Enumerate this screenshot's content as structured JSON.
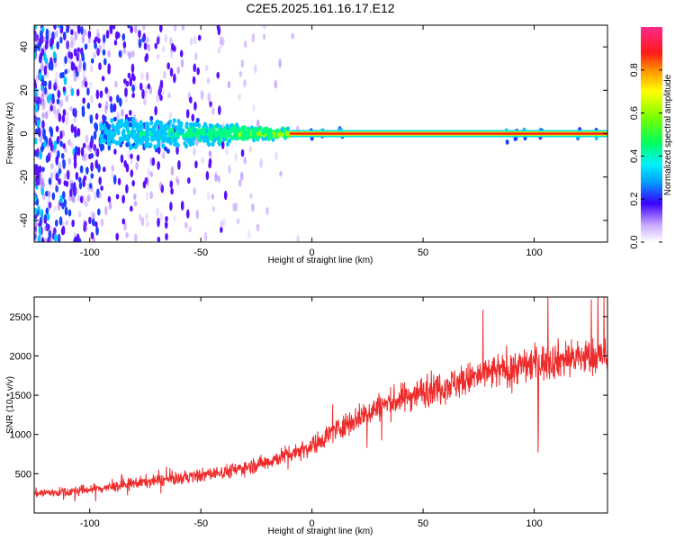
{
  "title": "C2E5.2025.161.16.17.E12",
  "colors": {
    "snr_line": "#ee2b2b",
    "spectrogram_base": "#7a00ff",
    "axes": "#000000"
  },
  "chart_data": [
    {
      "type": "heatmap",
      "xlabel": "Height of straight line (km)",
      "ylabel": "Frequency (Hz)",
      "xlim": [
        -125,
        133
      ],
      "ylim": [
        -50,
        50
      ],
      "xticks": [
        -100,
        -50,
        0,
        50,
        100
      ],
      "xtick_labels": [
        "-100",
        "-50",
        "0",
        "50",
        "100"
      ],
      "yticks": [
        -40,
        -20,
        0,
        20,
        40
      ],
      "ytick_labels": [
        "-40",
        "-20",
        "0",
        "20",
        "40"
      ],
      "colorbar": {
        "label": "Normalized spectral amplitude",
        "range": [
          0,
          1
        ],
        "ticks": [
          0.0,
          0.2,
          0.4,
          0.6,
          0.8
        ],
        "tick_labels": [
          "0.0",
          "0.2",
          "0.4",
          "0.6",
          "0.8"
        ],
        "colormap": "rainbow"
      },
      "carrier": {
        "frequency_hz": 0,
        "amplitude": 0.95,
        "x_from": -10,
        "x_to": 133
      }
    },
    {
      "type": "line",
      "xlabel": "Height of straight line (km)",
      "ylabel": "SNR (10 * v/v)",
      "xlim": [
        -125,
        133
      ],
      "ylim": [
        0,
        2750
      ],
      "xticks": [
        -100,
        -50,
        0,
        50,
        100
      ],
      "xtick_labels": [
        "-100",
        "-50",
        "0",
        "50",
        "100"
      ],
      "yticks": [
        500,
        1000,
        1500,
        2000,
        2500
      ],
      "ytick_labels": [
        "500",
        "1000",
        "1500",
        "2000",
        "2500"
      ],
      "series": [
        {
          "x": [
            -125,
            -110,
            -100,
            -90,
            -80,
            -70,
            -60,
            -50,
            -40,
            -30,
            -20,
            -10,
            0,
            10,
            20,
            30,
            40,
            50,
            60,
            70,
            80,
            90,
            100,
            110,
            120,
            133
          ],
          "y": [
            250,
            270,
            300,
            330,
            380,
            410,
            440,
            480,
            520,
            580,
            650,
            760,
            850,
            1050,
            1200,
            1350,
            1450,
            1550,
            1620,
            1700,
            1780,
            1850,
            1900,
            1950,
            1980,
            2000
          ]
        }
      ]
    }
  ]
}
